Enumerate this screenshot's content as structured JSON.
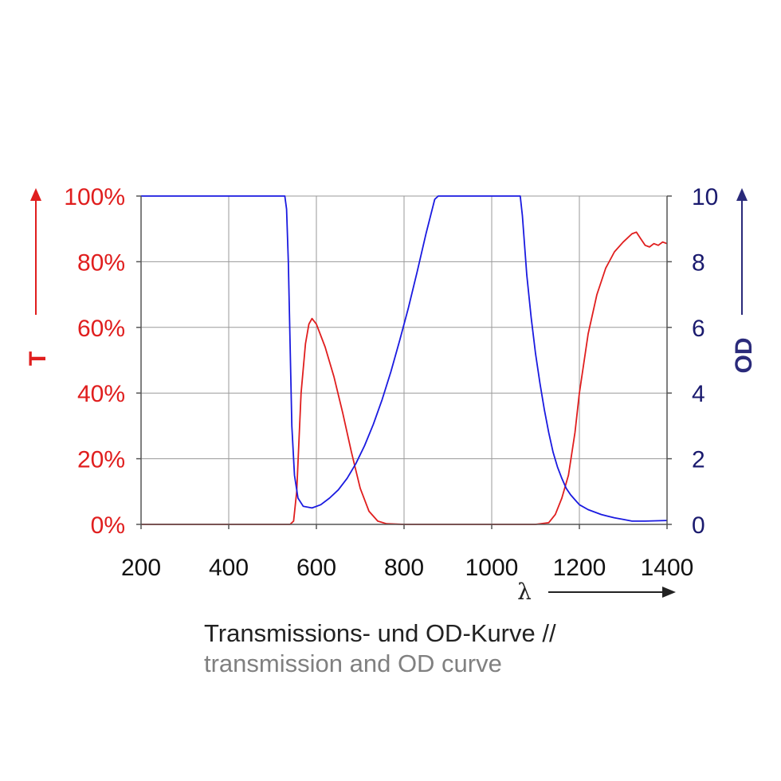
{
  "chart_data": {
    "type": "line",
    "title": "",
    "caption": {
      "line1": "Transmissions- und OD-Kurve //",
      "line2": "transmission and OD curve"
    },
    "xlabel": "λ",
    "ylabel_left": "T",
    "ylabel_right": "OD",
    "xlim": [
      200,
      1400
    ],
    "x_ticks": [
      "200",
      "400",
      "600",
      "800",
      "1000",
      "1200",
      "1400"
    ],
    "ylim_left": [
      0,
      100
    ],
    "y_ticks_left": [
      "0%",
      "20%",
      "40%",
      "60%",
      "80%",
      "100%"
    ],
    "ylim_right": [
      0,
      10
    ],
    "y_ticks_right": [
      "0",
      "2",
      "4",
      "6",
      "8",
      "10"
    ],
    "grid": true,
    "colors": {
      "transmission": "#e01e1e",
      "od": "#1a1ae0",
      "left_axis": "#e01e1e",
      "right_axis": "#2a2a7a",
      "grid": "#9a9a9a"
    },
    "series": [
      {
        "id": "transmission",
        "axis": "left",
        "x": [
          200,
          540,
          548,
          555,
          565,
          575,
          583,
          590,
          600,
          620,
          640,
          660,
          680,
          700,
          720,
          740,
          760,
          800,
          900,
          1000,
          1100,
          1130,
          1145,
          1160,
          1175,
          1190,
          1200,
          1220,
          1240,
          1260,
          1280,
          1300,
          1320,
          1330,
          1340,
          1350,
          1360,
          1370,
          1380,
          1390,
          1400
        ],
        "y": [
          0,
          0,
          1,
          10,
          40,
          55,
          61,
          62.7,
          61,
          54,
          45,
          34,
          22,
          11,
          4,
          1,
          0.2,
          0,
          0,
          0,
          0,
          0.5,
          3,
          8,
          15,
          28,
          40,
          58,
          70,
          78,
          83,
          86,
          88.5,
          89,
          87,
          85,
          84.5,
          85.5,
          85,
          86,
          85.5
        ]
      },
      {
        "id": "od",
        "axis": "right",
        "x": [
          200,
          528,
          532,
          536,
          540,
          544,
          550,
          558,
          570,
          590,
          610,
          630,
          650,
          670,
          690,
          710,
          730,
          750,
          770,
          790,
          810,
          830,
          850,
          870,
          878,
          1065,
          1070,
          1080,
          1090,
          1100,
          1110,
          1120,
          1130,
          1140,
          1150,
          1160,
          1170,
          1180,
          1190,
          1200,
          1220,
          1250,
          1280,
          1300,
          1320,
          1350,
          1400
        ],
        "y": [
          10,
          10,
          9.6,
          8.0,
          5.5,
          3.0,
          1.5,
          0.8,
          0.55,
          0.5,
          0.6,
          0.8,
          1.05,
          1.4,
          1.85,
          2.4,
          3.05,
          3.8,
          4.65,
          5.6,
          6.6,
          7.7,
          8.85,
          9.9,
          10,
          10,
          9.4,
          7.6,
          6.3,
          5.2,
          4.3,
          3.5,
          2.8,
          2.2,
          1.75,
          1.4,
          1.1,
          0.9,
          0.75,
          0.6,
          0.45,
          0.3,
          0.2,
          0.15,
          0.1,
          0.1,
          0.12
        ]
      }
    ]
  }
}
